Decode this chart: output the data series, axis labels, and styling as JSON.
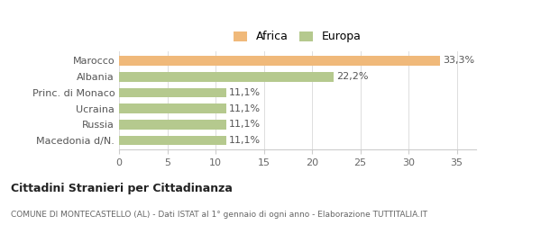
{
  "categories": [
    "Macedonia d/N.",
    "Russia",
    "Ucraina",
    "Princ. di Monaco",
    "Albania",
    "Marocco"
  ],
  "values": [
    11.1,
    11.1,
    11.1,
    11.1,
    22.2,
    33.3
  ],
  "labels": [
    "11,1%",
    "11,1%",
    "11,1%",
    "11,1%",
    "22,2%",
    "33,3%"
  ],
  "colors": [
    "#b5c98e",
    "#b5c98e",
    "#b5c98e",
    "#b5c98e",
    "#b5c98e",
    "#f0b97a"
  ],
  "legend": [
    {
      "label": "Africa",
      "color": "#f0b97a"
    },
    {
      "label": "Europa",
      "color": "#b5c98e"
    }
  ],
  "xlim": [
    0,
    37
  ],
  "xticks": [
    0,
    5,
    10,
    15,
    20,
    25,
    30,
    35
  ],
  "title": "Cittadini Stranieri per Cittadinanza",
  "subtitle": "COMUNE DI MONTECASTELLO (AL) - Dati ISTAT al 1° gennaio di ogni anno - Elaborazione TUTTITALIA.IT",
  "background_color": "#ffffff",
  "bar_height": 0.6
}
